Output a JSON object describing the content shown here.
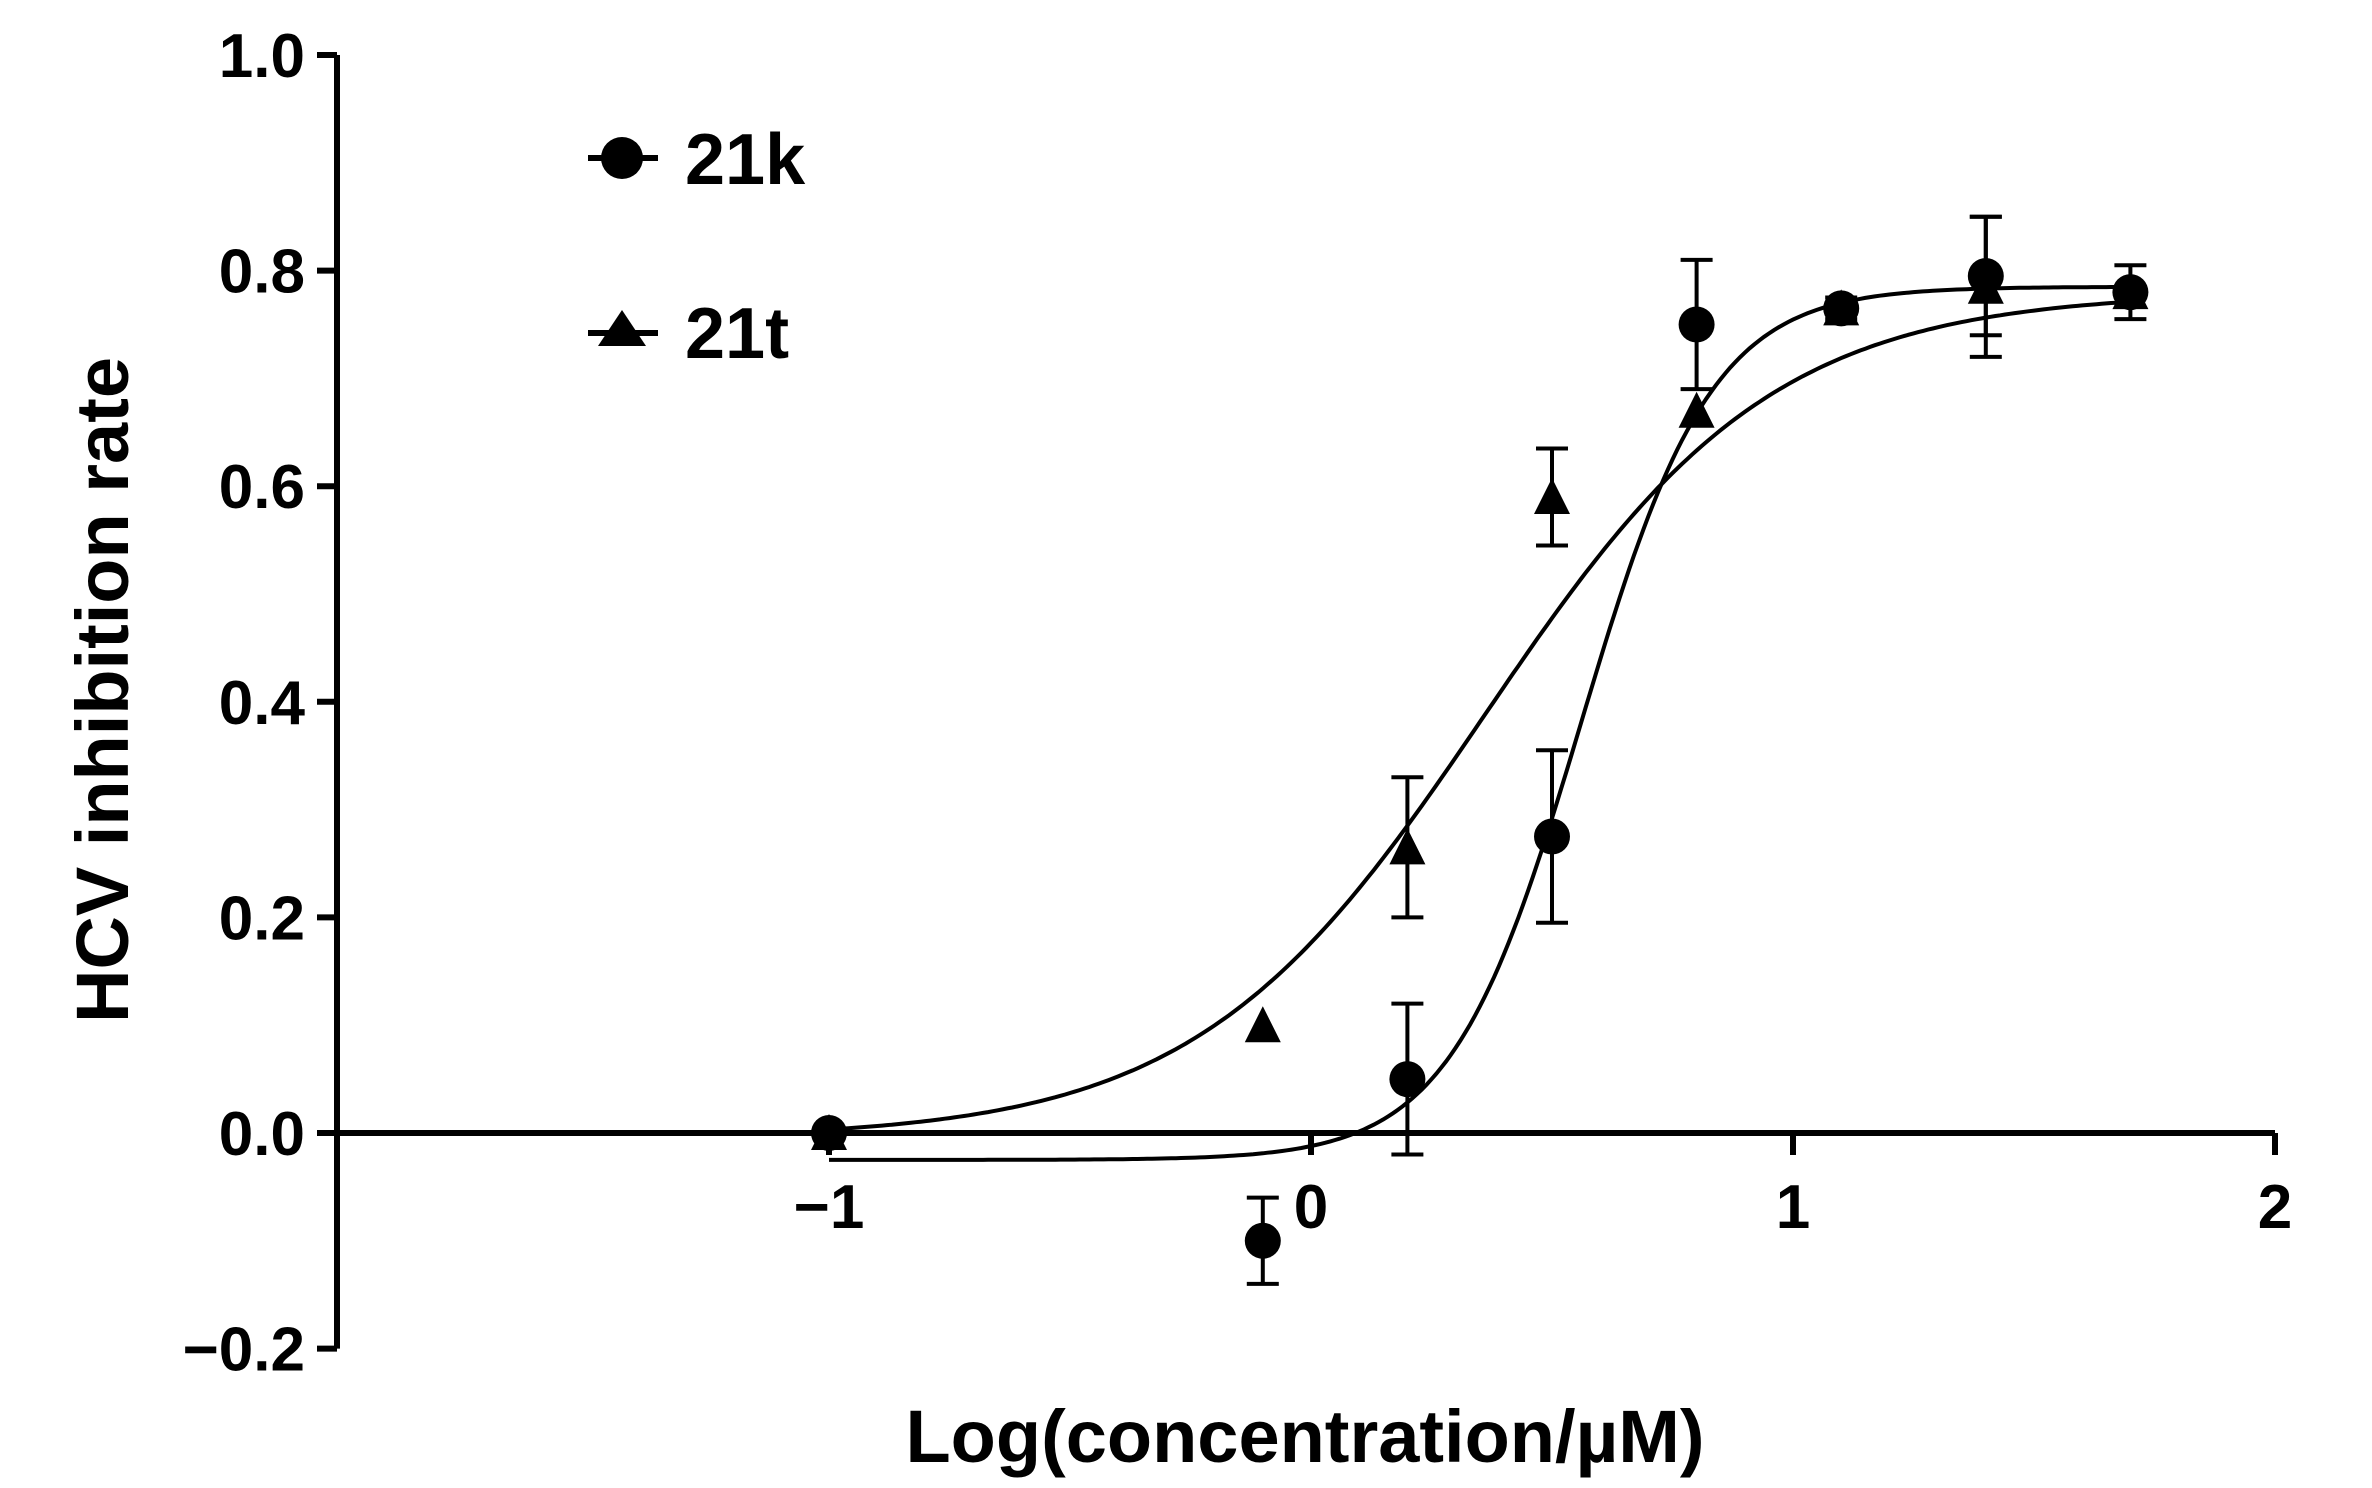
{
  "chart_data": {
    "type": "scatter",
    "xlabel": "Log(concentration/µM)",
    "ylabel": "HCV inhibition rate",
    "xlim": [
      -2,
      2
    ],
    "ylim": [
      -0.2,
      1.0
    ],
    "x_ticks": [
      -1,
      0,
      1,
      2
    ],
    "x_tick_labels": [
      "−1",
      "0",
      "1",
      "2"
    ],
    "y_ticks": [
      -0.2,
      0.0,
      0.2,
      0.4,
      0.6,
      0.8,
      1.0
    ],
    "y_tick_labels": [
      "−0.2",
      "0.0",
      "0.2",
      "0.4",
      "0.6",
      "0.8",
      "1.0"
    ],
    "grid": false,
    "legend_position": "top-left",
    "series": [
      {
        "name": "21k",
        "marker": "circle",
        "color": "#000000",
        "points": [
          {
            "x": -1.0,
            "y": 0.0,
            "err": 0.0
          },
          {
            "x": -0.1,
            "y": -0.1,
            "err": 0.04
          },
          {
            "x": 0.2,
            "y": 0.05,
            "err": 0.07
          },
          {
            "x": 0.5,
            "y": 0.275,
            "err": 0.08
          },
          {
            "x": 0.8,
            "y": 0.75,
            "err": 0.06
          },
          {
            "x": 1.1,
            "y": 0.765,
            "err": 0.01
          },
          {
            "x": 1.4,
            "y": 0.795,
            "err": 0.055
          },
          {
            "x": 1.7,
            "y": 0.78,
            "err": 0.025
          }
        ],
        "fit": {
          "bottom": -0.025,
          "top": 0.785,
          "logEC50": 0.56,
          "hill": 3.2
        }
      },
      {
        "name": "21t",
        "marker": "triangle",
        "color": "#000000",
        "points": [
          {
            "x": -1.0,
            "y": 0.0,
            "err": 0.0
          },
          {
            "x": -0.1,
            "y": 0.1,
            "err": 0.0
          },
          {
            "x": 0.2,
            "y": 0.265,
            "err": 0.065
          },
          {
            "x": 0.5,
            "y": 0.59,
            "err": 0.045
          },
          {
            "x": 0.8,
            "y": 0.67,
            "err": 0.0
          },
          {
            "x": 1.1,
            "y": 0.765,
            "err": 0.0
          },
          {
            "x": 1.4,
            "y": 0.785,
            "err": 0.065
          },
          {
            "x": 1.7,
            "y": 0.78,
            "err": 0.0
          }
        ],
        "fit": {
          "bottom": -0.005,
          "top": 0.78,
          "logEC50": 0.36,
          "hill": 1.45
        }
      }
    ]
  }
}
